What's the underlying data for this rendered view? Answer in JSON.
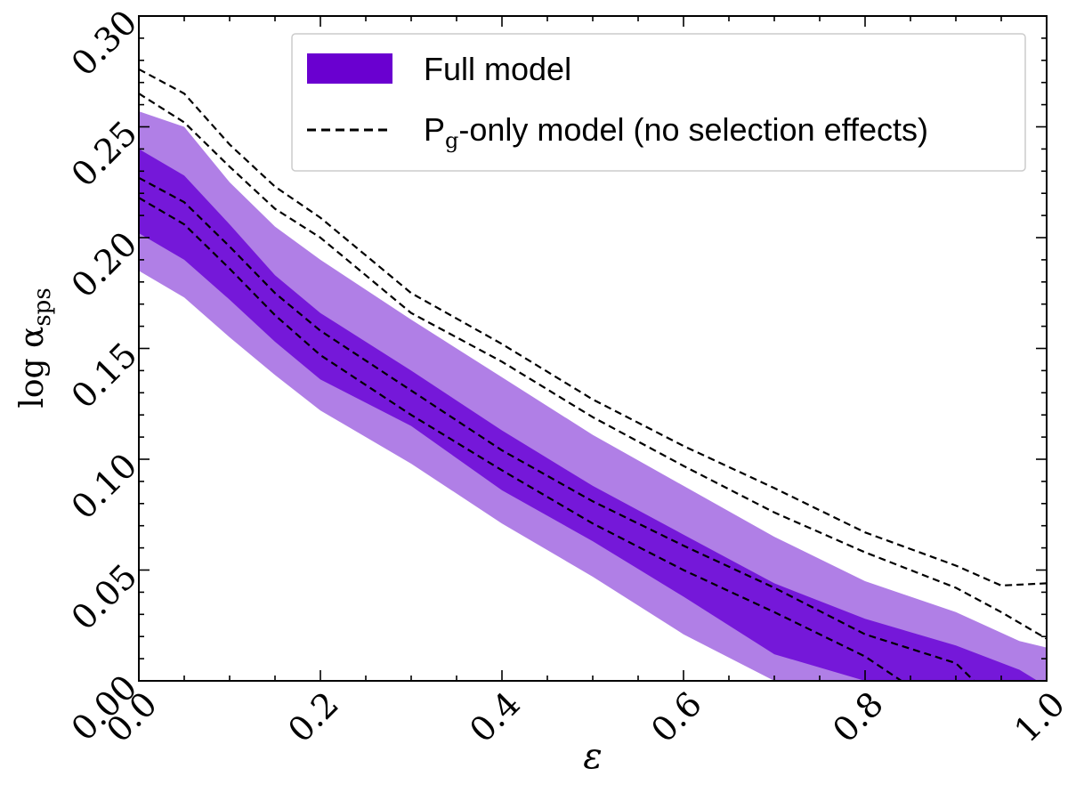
{
  "chart_data": {
    "type": "area",
    "xlabel": "ε",
    "ylabel": {
      "base": "log α",
      "sub": "sps"
    },
    "xlim": [
      0.0,
      1.0
    ],
    "ylim": [
      0.0,
      0.3
    ],
    "xticks": [
      "0.0",
      "0.2",
      "0.4",
      "0.6",
      "0.8",
      "1.0"
    ],
    "yticks": [
      "0.00",
      "0.05",
      "0.10",
      "0.15",
      "0.20",
      "0.25",
      "0.30"
    ],
    "grid": false,
    "legend_position": "top-right",
    "legend": [
      {
        "label": "Full model",
        "style": "filled"
      },
      {
        "label_pre": "P",
        "label_sub": "g",
        "label_post": "-only model (no selection effects)",
        "style": "dashed"
      }
    ],
    "colors": {
      "band_outer": "#b07fe6",
      "band_inner": "#7518d9",
      "legend_swatch": "#6a00d0",
      "dashed": "#000000"
    },
    "series": [
      {
        "name": "Full model",
        "kind": "band",
        "level": "outer",
        "x": [
          0.0,
          0.05,
          0.1,
          0.15,
          0.2,
          0.3,
          0.4,
          0.5,
          0.6,
          0.7,
          0.8,
          0.9,
          0.97,
          1.0
        ],
        "upper": [
          0.257,
          0.25,
          0.225,
          0.205,
          0.19,
          0.163,
          0.137,
          0.111,
          0.088,
          0.065,
          0.045,
          0.031,
          0.018,
          0.015
        ],
        "lower": [
          0.185,
          0.173,
          0.155,
          0.138,
          0.122,
          0.098,
          0.071,
          0.047,
          0.021,
          0.0,
          0.0,
          0.0,
          0.0,
          0.0
        ]
      },
      {
        "name": "Full model",
        "kind": "band",
        "level": "inner",
        "x": [
          0.0,
          0.05,
          0.1,
          0.15,
          0.2,
          0.3,
          0.4,
          0.5,
          0.6,
          0.7,
          0.8,
          0.9,
          0.97,
          0.99
        ],
        "upper": [
          0.24,
          0.228,
          0.206,
          0.183,
          0.166,
          0.14,
          0.113,
          0.088,
          0.066,
          0.044,
          0.028,
          0.016,
          0.005,
          0.0
        ],
        "lower": [
          0.202,
          0.19,
          0.172,
          0.153,
          0.136,
          0.115,
          0.086,
          0.063,
          0.038,
          0.012,
          0.0,
          0.0,
          0.0,
          0.0
        ]
      },
      {
        "name": "Pg-only outer contour (upper)",
        "kind": "line",
        "x": [
          0.0,
          0.05,
          0.1,
          0.15,
          0.2,
          0.3,
          0.4,
          0.5,
          0.6,
          0.7,
          0.8,
          0.9,
          0.95,
          1.0
        ],
        "y": [
          0.276,
          0.265,
          0.242,
          0.223,
          0.209,
          0.175,
          0.152,
          0.127,
          0.106,
          0.087,
          0.067,
          0.052,
          0.043,
          0.044
        ]
      },
      {
        "name": "Pg-only outer contour (lower)",
        "kind": "line",
        "x": [
          0.0,
          0.05,
          0.1,
          0.15,
          0.2,
          0.3,
          0.4,
          0.5,
          0.6,
          0.7,
          0.8,
          0.9,
          0.95,
          1.0
        ],
        "y": [
          0.265,
          0.252,
          0.232,
          0.213,
          0.2,
          0.166,
          0.144,
          0.119,
          0.097,
          0.076,
          0.058,
          0.042,
          0.031,
          0.019
        ]
      },
      {
        "name": "Pg-only inner contour (upper)",
        "kind": "line",
        "x": [
          0.0,
          0.05,
          0.1,
          0.15,
          0.2,
          0.3,
          0.4,
          0.5,
          0.6,
          0.7,
          0.8,
          0.9,
          0.92
        ],
        "y": [
          0.227,
          0.216,
          0.196,
          0.175,
          0.158,
          0.131,
          0.104,
          0.081,
          0.061,
          0.042,
          0.021,
          0.008,
          0.0
        ]
      },
      {
        "name": "Pg-only inner contour (lower)",
        "kind": "line",
        "x": [
          0.0,
          0.05,
          0.1,
          0.15,
          0.2,
          0.3,
          0.4,
          0.5,
          0.6,
          0.7,
          0.8,
          0.84
        ],
        "y": [
          0.218,
          0.206,
          0.186,
          0.165,
          0.147,
          0.12,
          0.095,
          0.071,
          0.05,
          0.031,
          0.011,
          0.0
        ]
      }
    ]
  }
}
